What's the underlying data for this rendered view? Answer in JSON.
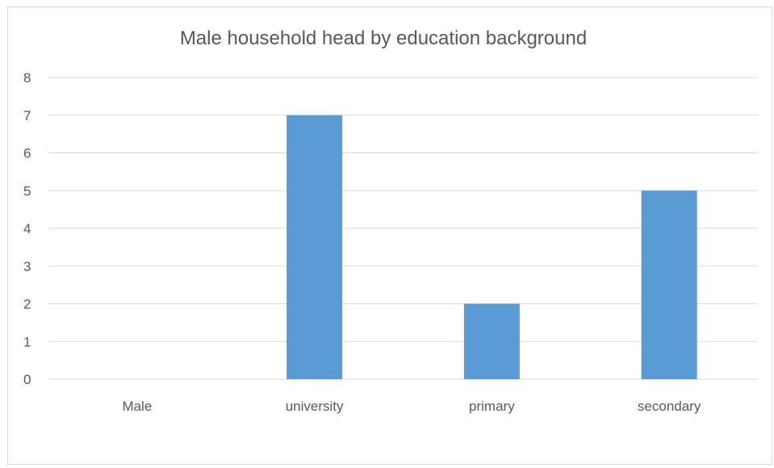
{
  "chart_data": {
    "type": "bar",
    "title": "Male household head by education background",
    "xlabel": "",
    "ylabel": "",
    "categories": [
      "Male",
      "university",
      "primary",
      "secondary"
    ],
    "values": [
      null,
      7,
      2,
      5
    ],
    "ylim": [
      0,
      8
    ],
    "yticks": [
      "0",
      "1",
      "2",
      "3",
      "4",
      "5",
      "6",
      "7",
      "8"
    ],
    "grid": true,
    "legend": "none",
    "colors": {
      "bar": "#5b9bd5",
      "grid": "#d9d9d9",
      "text": "#595959",
      "axis": "#d9d9d9"
    }
  }
}
